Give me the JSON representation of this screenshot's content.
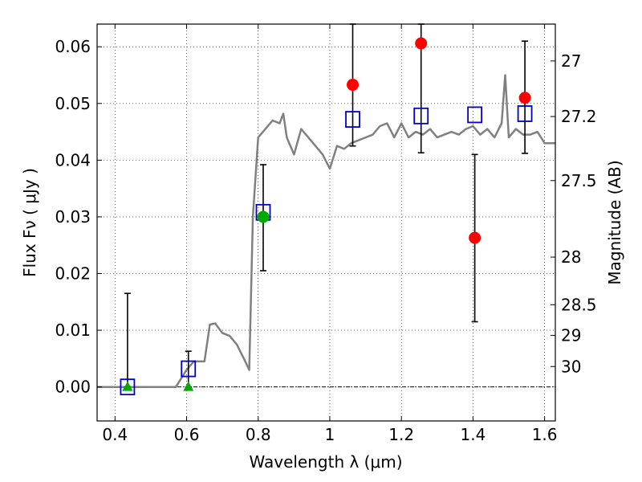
{
  "chart_data": {
    "type": "scatter",
    "xlabel": "Wavelength  λ (μm)",
    "ylabel": "Flux  Fν ( μJy )",
    "ylabel_right": "Magnitude (AB)",
    "xlim": [
      0.35,
      1.63
    ],
    "ylim": [
      -0.006,
      0.064
    ],
    "grid": true,
    "x_ticks": [
      0.4,
      0.6,
      0.8,
      1.0,
      1.2,
      1.4,
      1.6
    ],
    "x_tick_labels": [
      "0.4",
      "0.6",
      "0.8",
      "1",
      "1.2",
      "1.4",
      "1.6"
    ],
    "y_ticks": [
      0.0,
      0.01,
      0.02,
      0.03,
      0.04,
      0.05,
      0.06
    ],
    "y_tick_labels": [
      "0.00",
      "0.01",
      "0.02",
      "0.03",
      "0.04",
      "0.05",
      "0.06"
    ],
    "right_ticks": [
      {
        "label": "27",
        "flux": 0.0575
      },
      {
        "label": "27.2",
        "flux": 0.0477
      },
      {
        "label": "27.5",
        "flux": 0.0364
      },
      {
        "label": "28",
        "flux": 0.0229
      },
      {
        "label": "28.5",
        "flux": 0.0145
      },
      {
        "label": "29",
        "flux": 0.0091
      },
      {
        "label": "30",
        "flux": 0.0036
      }
    ],
    "sed_model": {
      "color": "#808080",
      "x": [
        0.35,
        0.57,
        0.6,
        0.62,
        0.65,
        0.665,
        0.68,
        0.7,
        0.72,
        0.74,
        0.76,
        0.775,
        0.785,
        0.8,
        0.82,
        0.84,
        0.86,
        0.87,
        0.88,
        0.9,
        0.92,
        0.94,
        0.96,
        0.98,
        1.0,
        1.02,
        1.04,
        1.06,
        1.08,
        1.1,
        1.12,
        1.14,
        1.16,
        1.18,
        1.2,
        1.22,
        1.24,
        1.26,
        1.28,
        1.3,
        1.32,
        1.34,
        1.36,
        1.38,
        1.4,
        1.42,
        1.44,
        1.46,
        1.48,
        1.49,
        1.5,
        1.52,
        1.54,
        1.56,
        1.58,
        1.6,
        1.63
      ],
      "y": [
        0.0,
        0.0,
        0.003,
        0.0045,
        0.0045,
        0.011,
        0.0112,
        0.0095,
        0.009,
        0.0075,
        0.005,
        0.003,
        0.03,
        0.044,
        0.0455,
        0.047,
        0.0465,
        0.0482,
        0.044,
        0.041,
        0.0455,
        0.044,
        0.0425,
        0.041,
        0.0385,
        0.0425,
        0.042,
        0.043,
        0.0435,
        0.044,
        0.0445,
        0.046,
        0.0465,
        0.044,
        0.0465,
        0.044,
        0.045,
        0.0445,
        0.0455,
        0.044,
        0.0445,
        0.045,
        0.0445,
        0.0455,
        0.046,
        0.0445,
        0.0455,
        0.044,
        0.0465,
        0.055,
        0.044,
        0.0455,
        0.0445,
        0.0445,
        0.045,
        0.043,
        0.043
      ]
    },
    "observed": [
      {
        "x": 0.435,
        "y": 0.0,
        "err_low": 0.0,
        "err_high": 0.0165,
        "marker": "triangle",
        "color": "#00aa00"
      },
      {
        "x": 0.605,
        "y": 0.0,
        "err_low": 0.0,
        "err_high": 0.0063,
        "marker": "triangle",
        "color": "#00aa00"
      },
      {
        "x": 0.814,
        "y": 0.03,
        "err_low": 0.0205,
        "err_high": 0.0392,
        "marker": "circle",
        "color": "#00aa00"
      },
      {
        "x": 1.064,
        "y": 0.0533,
        "err_low": 0.0425,
        "err_high": 0.064,
        "marker": "circle",
        "color": "#ff0000"
      },
      {
        "x": 1.255,
        "y": 0.0606,
        "err_low": 0.0413,
        "err_high": 0.064,
        "marker": "circle",
        "color": "#ff0000"
      },
      {
        "x": 1.405,
        "y": 0.0263,
        "err_low": 0.0115,
        "err_high": 0.041,
        "marker": "circle",
        "color": "#ff0000"
      },
      {
        "x": 1.545,
        "y": 0.051,
        "err_low": 0.0412,
        "err_high": 0.061,
        "marker": "circle",
        "color": "#ff0000"
      }
    ],
    "model_fluxes": {
      "marker": "square",
      "color": "#0000cc",
      "points": [
        {
          "x": 0.435,
          "y": 0.0
        },
        {
          "x": 0.605,
          "y": 0.0032
        },
        {
          "x": 0.814,
          "y": 0.0308
        },
        {
          "x": 1.064,
          "y": 0.0472
        },
        {
          "x": 1.255,
          "y": 0.0478
        },
        {
          "x": 1.405,
          "y": 0.048
        },
        {
          "x": 1.545,
          "y": 0.0482
        }
      ]
    }
  }
}
